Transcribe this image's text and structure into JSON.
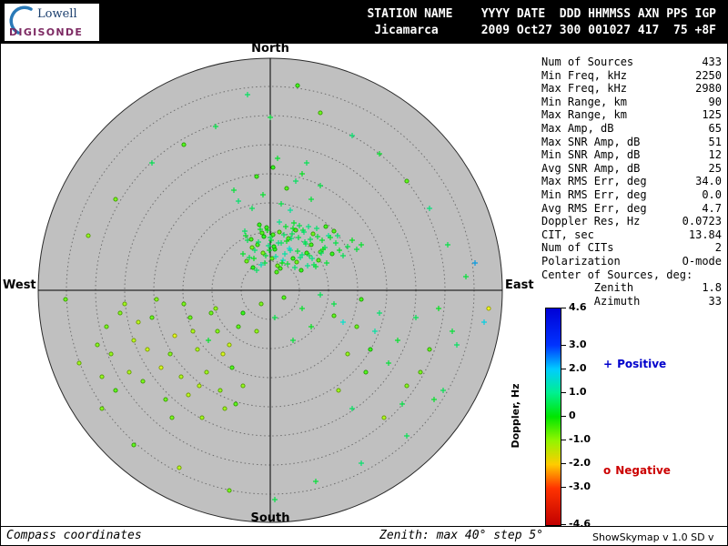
{
  "header": {
    "row1": "STATION NAME    YYYY DATE  DDD HHMMSS AXN PPS IGP",
    "row2": " Jicamarca      2009 Oct27 300 001027 417  75 +8F"
  },
  "logo": {
    "line1": "Lowell",
    "line2": "DIGISONDE"
  },
  "compass": {
    "north": "North",
    "south": "South",
    "east": "East",
    "west": "West"
  },
  "stats": {
    "rows": [
      {
        "label": "Num of Sources",
        "value": "433"
      },
      {
        "label": "Min Freq, kHz",
        "value": "2250"
      },
      {
        "label": "Max Freq, kHz",
        "value": "2980"
      },
      {
        "label": "Min Range, km",
        "value": "90"
      },
      {
        "label": "Max Range, km",
        "value": "125"
      },
      {
        "label": "Max Amp, dB",
        "value": "65"
      },
      {
        "label": "Max SNR Amp, dB",
        "value": "51"
      },
      {
        "label": "Min SNR Amp, dB",
        "value": "12"
      },
      {
        "label": "Avg SNR Amp, dB",
        "value": "25"
      },
      {
        "label": "Max RMS Err, deg",
        "value": "34.0"
      },
      {
        "label": "Min RMS Err, deg",
        "value": "0.0"
      },
      {
        "label": "Avg RMS Err, deg",
        "value": "4.7"
      },
      {
        "label": "Doppler Res, Hz",
        "value": "0.0723"
      },
      {
        "label": "CIT, sec",
        "value": "13.84"
      },
      {
        "label": "Num of CITs",
        "value": "2"
      },
      {
        "label": "Polarization",
        "value": "O-mode"
      },
      {
        "label": "Center of Sources, deg:",
        "value": ""
      },
      {
        "label": "        Zenith",
        "value": "1.8"
      },
      {
        "label": "        Azimuth",
        "value": "33"
      }
    ]
  },
  "colorbar": {
    "title": "Doppler, Hz",
    "min": -4.6,
    "max": 4.6,
    "ticks": [
      {
        "v": 4.6,
        "label": "4.6"
      },
      {
        "v": 3.0,
        "label": "3.0"
      },
      {
        "v": 2.0,
        "label": "2.0"
      },
      {
        "v": 1.0,
        "label": "1.0"
      },
      {
        "v": 0,
        "label": "0"
      },
      {
        "v": -1.0,
        "label": "-1.0"
      },
      {
        "v": -2.0,
        "label": "-2.0"
      },
      {
        "v": -3.0,
        "label": "-3.0"
      },
      {
        "v": -4.6,
        "label": "-4.6"
      }
    ]
  },
  "legend": {
    "positive_symbol": "+",
    "positive_label": "Positive",
    "negative_symbol": "o",
    "negative_label": "Negative"
  },
  "colors": {
    "positive": "#0000cc",
    "negative": "#cc0000",
    "disc": "#c0c0c0",
    "header_bg": "#000000"
  },
  "footer": {
    "left": "Compass coordinates",
    "center": "Zenith: max 40°  step 5°",
    "right": "ShowSkymap v 1.0  SD v 4.2"
  },
  "chart_data": {
    "type": "scatter",
    "projection": "polar-skymap",
    "zenith_max_deg": 40,
    "zenith_step_deg": 5,
    "num_rings": 8,
    "doppler_range_hz": [
      -4.6,
      4.6
    ],
    "symbol_rule": "+ plotted when doppler >= 0 (Positive), o when doppler < 0 (Negative)",
    "points_format": "[dx_px, dy_px, doppler_hz] relative to plot center, y down",
    "points": [
      [
        -5,
        -38,
        0.4
      ],
      [
        12,
        -52,
        0.7
      ],
      [
        3,
        -61,
        -0.3
      ],
      [
        22,
        -44,
        1.1
      ],
      [
        -18,
        -35,
        0.2
      ],
      [
        31,
        -58,
        0.5
      ],
      [
        8,
        -27,
        -0.6
      ],
      [
        -2,
        -49,
        0.9
      ],
      [
        17,
        -70,
        0.3
      ],
      [
        40,
        -41,
        -0.2
      ],
      [
        -25,
        -55,
        0.6
      ],
      [
        14,
        -33,
        1.4
      ],
      [
        -9,
        -63,
        -0.4
      ],
      [
        27,
        -25,
        0.8
      ],
      [
        5,
        -45,
        -0.1
      ],
      [
        36,
        -66,
        0.4
      ],
      [
        -15,
        -22,
        0.7
      ],
      [
        20,
        -57,
        -0.5
      ],
      [
        -30,
        -40,
        0.3
      ],
      [
        10,
        -75,
        1.0
      ],
      [
        45,
        -50,
        -0.3
      ],
      [
        -6,
        -30,
        0.5
      ],
      [
        25,
        -68,
        0.2
      ],
      [
        -20,
        -47,
        -0.7
      ],
      [
        33,
        -36,
        0.9
      ],
      [
        1,
        -55,
        0.4
      ],
      [
        -12,
        -72,
        -0.2
      ],
      [
        48,
        -28,
        0.6
      ],
      [
        16,
        -40,
        1.2
      ],
      [
        -27,
        -60,
        0.3
      ],
      [
        7,
        -20,
        -0.4
      ],
      [
        38,
        -53,
        0.7
      ],
      [
        -3,
        -66,
        0.1
      ],
      [
        29,
        -31,
        -0.6
      ],
      [
        -17,
        -44,
        0.8
      ],
      [
        52,
        -59,
        0.4
      ],
      [
        11,
        -24,
        -0.3
      ],
      [
        -23,
        -36,
        0.5
      ],
      [
        42,
        -70,
        0.9
      ],
      [
        4,
        -48,
        -0.1
      ],
      [
        24,
        -62,
        0.6
      ],
      [
        -10,
        -28,
        1.3
      ],
      [
        55,
        -42,
        -0.5
      ],
      [
        18,
        -54,
        0.2
      ],
      [
        -28,
        -65,
        0.7
      ],
      [
        34,
        -22,
        -0.2
      ],
      [
        0,
        -58,
        0.5
      ],
      [
        46,
        -35,
        1.0
      ],
      [
        -14,
        -50,
        -0.4
      ],
      [
        26,
        -74,
        0.3
      ],
      [
        60,
        -47,
        0.6
      ],
      [
        -8,
        -41,
        -0.7
      ],
      [
        37,
        -64,
        0.8
      ],
      [
        13,
        -30,
        0.1
      ],
      [
        -21,
        -56,
        -0.3
      ],
      [
        50,
        -26,
        0.4
      ],
      [
        21,
        -46,
        1.5
      ],
      [
        -4,
        -69,
        -0.2
      ],
      [
        43,
        -38,
        0.5
      ],
      [
        9,
        -52,
        0.9
      ],
      [
        -26,
        -32,
        -0.6
      ],
      [
        57,
        -55,
        0.3
      ],
      [
        15,
        -61,
        0.7
      ],
      [
        -19,
        -25,
        -0.1
      ],
      [
        30,
        -43,
        0.4
      ],
      [
        64,
        -60,
        1.1
      ],
      [
        2,
        -35,
        -0.5
      ],
      [
        39,
        -51,
        0.6
      ],
      [
        -11,
        -67,
        0.2
      ],
      [
        53,
        -33,
        -0.4
      ],
      [
        23,
        -57,
        0.8
      ],
      [
        -1,
        -44,
        0.3
      ],
      [
        68,
        -40,
        -0.2
      ],
      [
        32,
        -71,
        0.5
      ],
      [
        6,
        -37,
        1.2
      ],
      [
        47,
        -62,
        -0.6
      ],
      [
        19,
        -29,
        0.4
      ],
      [
        -13,
        -53,
        0.7
      ],
      [
        58,
        -45,
        0.1
      ],
      [
        28,
        -66,
        -0.3
      ],
      [
        72,
        -52,
        0.5
      ],
      [
        35,
        -39,
        0.9
      ],
      [
        -7,
        -59,
        -0.1
      ],
      [
        62,
        -30,
        0.4
      ],
      [
        44,
        -56,
        0.6
      ],
      [
        10,
        -64,
        -0.5
      ],
      [
        76,
        -44,
        0.2
      ],
      [
        51,
        -68,
        0.8
      ],
      [
        25,
        -35,
        -0.2
      ],
      [
        66,
        -58,
        0.3
      ],
      [
        80,
        -38,
        0.6
      ],
      [
        41,
        -27,
        1.0
      ],
      [
        70,
        -65,
        -0.4
      ],
      [
        85,
        -48,
        0.5
      ],
      [
        56,
        -41,
        0.7
      ],
      [
        90,
        -55,
        0.2
      ],
      [
        61,
        -70,
        -0.3
      ],
      [
        95,
        -45,
        0.4
      ],
      [
        74,
        -60,
        0.8
      ],
      [
        100,
        -50,
        0.3
      ],
      [
        12,
        -95,
        0.5
      ],
      [
        -8,
        -105,
        0.3
      ],
      [
        28,
        -120,
        0.7
      ],
      [
        3,
        -135,
        -0.2
      ],
      [
        45,
        -100,
        0.4
      ],
      [
        -20,
        -90,
        0.6
      ],
      [
        18,
        -112,
        -0.4
      ],
      [
        35,
        -128,
        0.2
      ],
      [
        -35,
        -98,
        0.8
      ],
      [
        55,
        -115,
        0.5
      ],
      [
        8,
        -145,
        0.3
      ],
      [
        -15,
        -125,
        -0.3
      ],
      [
        40,
        -140,
        0.6
      ],
      [
        22,
        -88,
        1.1
      ],
      [
        -40,
        -110,
        0.4
      ],
      [
        15,
        8,
        -0.4
      ],
      [
        35,
        20,
        0.3
      ],
      [
        -10,
        15,
        -0.7
      ],
      [
        55,
        5,
        0.6
      ],
      [
        -30,
        25,
        -0.2
      ],
      [
        5,
        30,
        0.5
      ],
      [
        70,
        28,
        -0.5
      ],
      [
        45,
        40,
        0.2
      ],
      [
        -15,
        45,
        -0.9
      ],
      [
        25,
        55,
        0.4
      ],
      [
        -60,
        20,
        -0.9
      ],
      [
        -85,
        45,
        -1.1
      ],
      [
        -110,
        70,
        -0.8
      ],
      [
        -45,
        60,
        -1.3
      ],
      [
        -130,
        30,
        -0.6
      ],
      [
        -70,
        90,
        -1.0
      ],
      [
        -95,
        15,
        -0.7
      ],
      [
        -150,
        55,
        -1.2
      ],
      [
        -55,
        110,
        -0.9
      ],
      [
        -120,
        85,
        -1.4
      ],
      [
        -35,
        40,
        -0.5
      ],
      [
        -165,
        25,
        -0.8
      ],
      [
        -80,
        65,
        -1.1
      ],
      [
        -140,
        100,
        -0.7
      ],
      [
        -50,
        130,
        -1.0
      ],
      [
        -105,
        50,
        -1.5
      ],
      [
        -175,
        70,
        -0.9
      ],
      [
        -65,
        25,
        -0.6
      ],
      [
        -90,
        115,
        -1.2
      ],
      [
        -125,
        10,
        -0.8
      ],
      [
        -155,
        90,
        -1.1
      ],
      [
        -42,
        85,
        -0.4
      ],
      [
        -180,
        40,
        -0.7
      ],
      [
        -75,
        140,
        -1.0
      ],
      [
        -115,
        120,
        -0.6
      ],
      [
        -135,
        65,
        -1.3
      ],
      [
        -58,
        45,
        -0.8
      ],
      [
        -98,
        95,
        -1.1
      ],
      [
        -170,
        110,
        -0.5
      ],
      [
        -30,
        105,
        -0.9
      ],
      [
        -145,
        35,
        -1.2
      ],
      [
        -88,
        30,
        -0.6
      ],
      [
        -190,
        60,
        -0.8
      ],
      [
        -52,
        70,
        -1.4
      ],
      [
        -108,
        140,
        -0.7
      ],
      [
        -160,
        15,
        -1.0
      ],
      [
        -38,
        125,
        -0.5
      ],
      [
        -78,
        105,
        -1.2
      ],
      [
        -185,
        95,
        -0.9
      ],
      [
        -68,
        55,
        0.3
      ],
      [
        70,
        15,
        0.5
      ],
      [
        95,
        40,
        -0.6
      ],
      [
        120,
        25,
        0.8
      ],
      [
        85,
        70,
        -0.9
      ],
      [
        140,
        55,
        0.3
      ],
      [
        105,
        90,
        -0.4
      ],
      [
        160,
        30,
        0.6
      ],
      [
        75,
        110,
        -1.0
      ],
      [
        130,
        80,
        0.4
      ],
      [
        175,
        65,
        -0.5
      ],
      [
        90,
        130,
        0.7
      ],
      [
        150,
        105,
        -0.8
      ],
      [
        115,
        45,
        1.2
      ],
      [
        185,
        20,
        0.2
      ],
      [
        100,
        10,
        -0.3
      ],
      [
        145,
        125,
        0.5
      ],
      [
        165,
        90,
        -0.7
      ],
      [
        200,
        45,
        0.4
      ],
      [
        125,
        140,
        -1.1
      ],
      [
        190,
        110,
        0.6
      ],
      [
        80,
        35,
        1.5
      ],
      [
        110,
        65,
        -0.2
      ],
      [
        0,
        -190,
        0.4
      ],
      [
        -25,
        -215,
        0.7
      ],
      [
        30,
        -225,
        -0.3
      ],
      [
        -60,
        -180,
        0.5
      ],
      [
        55,
        -195,
        -0.6
      ],
      [
        90,
        -170,
        0.8
      ],
      [
        -95,
        -160,
        -0.4
      ],
      [
        120,
        -150,
        0.3
      ],
      [
        -130,
        -140,
        0.6
      ],
      [
        150,
        -120,
        -0.5
      ],
      [
        175,
        -90,
        0.9
      ],
      [
        -170,
        -100,
        -0.7
      ],
      [
        195,
        -50,
        0.5
      ],
      [
        -200,
        -60,
        -0.9
      ],
      [
        215,
        -15,
        0.4
      ],
      [
        -225,
        10,
        -0.6
      ],
      [
        205,
        60,
        0.7
      ],
      [
        -210,
        80,
        -1.0
      ],
      [
        180,
        120,
        0.3
      ],
      [
        -185,
        130,
        -0.8
      ],
      [
        150,
        160,
        0.6
      ],
      [
        -150,
        170,
        -0.5
      ],
      [
        100,
        190,
        0.8
      ],
      [
        -100,
        195,
        -1.2
      ],
      [
        50,
        210,
        0.4
      ],
      [
        -45,
        220,
        -0.7
      ],
      [
        5,
        230,
        0.5
      ],
      [
        235,
        35,
        1.8
      ],
      [
        225,
        -30,
        2.2
      ],
      [
        240,
        20,
        -1.6
      ]
    ]
  }
}
